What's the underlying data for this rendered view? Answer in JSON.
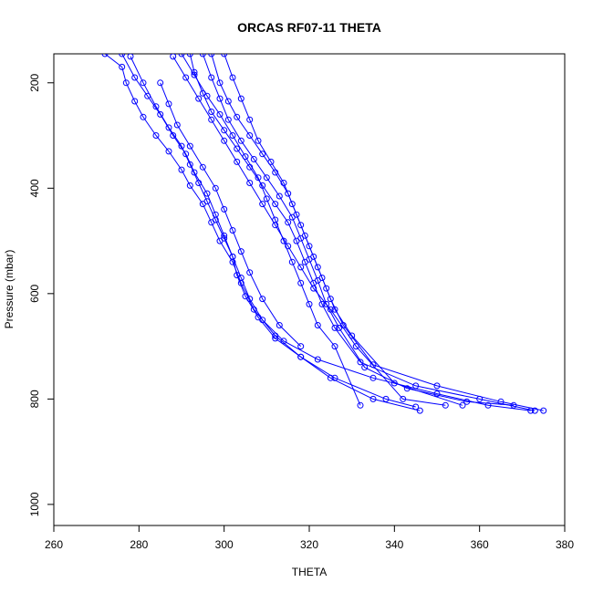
{
  "chart_data": {
    "type": "scatter",
    "title": "ORCAS RF07-11 THETA",
    "xlabel": "THETA",
    "ylabel": "Pressure (mbar)",
    "xlim": [
      260,
      380
    ],
    "ylim": [
      1040,
      145
    ],
    "y_reversed": true,
    "x_ticks": [
      "260",
      "280",
      "300",
      "320",
      "340",
      "360",
      "380"
    ],
    "y_ticks": [
      "200",
      "400",
      "600",
      "800",
      "1000"
    ],
    "grid": false,
    "legend": "none",
    "line_color": "#0000ff",
    "marker": "open-circle",
    "series": [
      {
        "x": [
          272,
          276,
          277,
          279,
          281,
          284,
          287,
          290,
          292,
          295,
          297,
          299,
          302,
          304,
          307,
          312,
          318,
          325,
          335,
          346
        ],
        "y": [
          145,
          170,
          200,
          235,
          265,
          300,
          330,
          365,
          395,
          430,
          465,
          500,
          540,
          580,
          630,
          680,
          720,
          760,
          800,
          822
        ]
      },
      {
        "x": [
          276,
          279,
          282,
          285,
          288,
          291,
          293,
          296,
          298,
          300,
          302,
          304,
          306,
          309,
          314,
          322,
          335,
          350,
          362,
          372
        ],
        "y": [
          145,
          190,
          225,
          260,
          300,
          335,
          370,
          410,
          450,
          490,
          530,
          570,
          610,
          650,
          690,
          725,
          760,
          790,
          812,
          822
        ]
      },
      {
        "x": [
          278,
          281,
          284,
          287,
          290,
          292,
          294,
          296,
          298,
          300,
          302,
          303,
          305,
          308,
          312,
          318,
          326,
          338,
          345
        ],
        "y": [
          150,
          200,
          245,
          285,
          320,
          355,
          390,
          425,
          460,
          495,
          530,
          565,
          605,
          645,
          685,
          720,
          760,
          800,
          815
        ]
      },
      {
        "x": [
          292,
          293,
          295,
          297,
          300,
          303,
          306,
          309,
          312,
          315,
          317,
          319,
          321,
          323,
          326,
          332,
          345,
          360,
          373
        ],
        "y": [
          145,
          180,
          220,
          255,
          290,
          325,
          360,
          395,
          430,
          465,
          500,
          540,
          580,
          620,
          665,
          730,
          775,
          800,
          822
        ]
      },
      {
        "x": [
          295,
          297,
          299,
          301,
          304,
          307,
          310,
          313,
          316,
          318,
          320,
          322,
          324,
          327,
          333,
          343,
          357,
          368
        ],
        "y": [
          145,
          190,
          230,
          270,
          310,
          345,
          380,
          415,
          455,
          495,
          535,
          575,
          620,
          665,
          740,
          780,
          805,
          812
        ]
      },
      {
        "x": [
          297,
          299,
          301,
          303,
          306,
          309,
          312,
          315,
          317,
          319,
          321,
          323,
          325,
          328,
          335,
          350,
          365,
          375
        ],
        "y": [
          145,
          200,
          235,
          265,
          300,
          335,
          370,
          410,
          450,
          490,
          530,
          570,
          610,
          660,
          735,
          775,
          805,
          822
        ]
      },
      {
        "x": [
          290,
          293,
          296,
          299,
          302,
          305,
          308,
          310,
          312,
          314,
          316,
          318,
          320,
          322,
          326,
          332
        ],
        "y": [
          145,
          185,
          225,
          260,
          300,
          340,
          380,
          420,
          460,
          500,
          540,
          580,
          620,
          660,
          700,
          812
        ]
      },
      {
        "x": [
          300,
          302,
          304,
          306,
          308,
          311,
          314,
          316,
          318,
          320,
          322,
          324,
          326,
          330,
          340,
          356
        ],
        "y": [
          145,
          190,
          230,
          270,
          310,
          350,
          390,
          430,
          470,
          510,
          550,
          590,
          630,
          680,
          770,
          812
        ]
      },
      {
        "x": [
          285,
          287,
          289,
          292,
          295,
          298,
          300,
          302,
          304,
          306,
          309,
          313,
          318
        ],
        "y": [
          200,
          240,
          280,
          320,
          360,
          400,
          440,
          480,
          520,
          560,
          610,
          660,
          700
        ]
      },
      {
        "x": [
          288,
          291,
          294,
          297,
          300,
          303,
          306,
          309,
          312,
          315,
          318,
          321,
          325,
          331,
          342,
          352
        ],
        "y": [
          150,
          190,
          230,
          270,
          310,
          350,
          390,
          430,
          470,
          510,
          550,
          590,
          630,
          700,
          800,
          812
        ]
      }
    ]
  }
}
